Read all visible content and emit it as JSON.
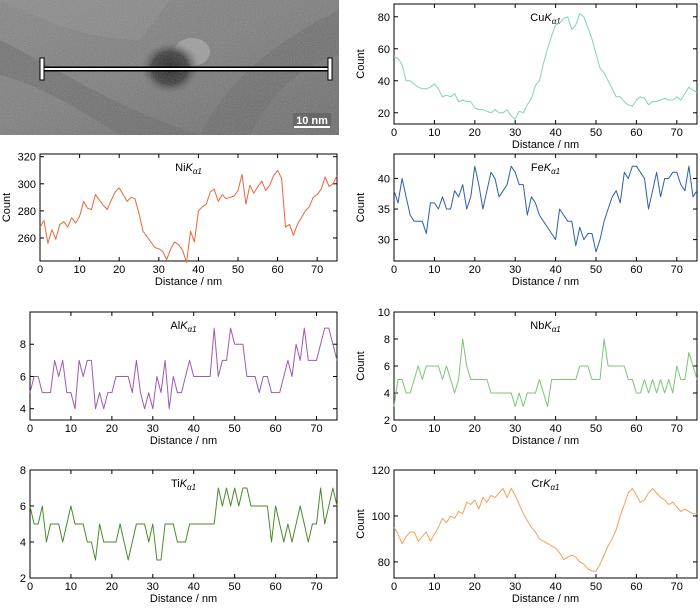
{
  "image_panel": {
    "scale_bar_label": "10 nm"
  },
  "chart_data": [
    {
      "type": "line",
      "element": "Cu",
      "line": "Kα1",
      "color": "#7fd3c3",
      "xlabel": "Distance / nm",
      "ylabel": "Count",
      "xlim": [
        0,
        75
      ],
      "ylim": [
        13,
        88
      ],
      "xticks": [
        0,
        10,
        20,
        30,
        40,
        50,
        60,
        70
      ],
      "yticks": [
        20,
        40,
        60,
        80
      ],
      "x": [
        0,
        1,
        2,
        3,
        4,
        5,
        6,
        7,
        8,
        9,
        10,
        11,
        12,
        13,
        14,
        15,
        16,
        17,
        18,
        19,
        20,
        21,
        22,
        23,
        24,
        25,
        26,
        27,
        28,
        29,
        30,
        31,
        32,
        33,
        34,
        35,
        36,
        37,
        38,
        39,
        40,
        41,
        42,
        43,
        44,
        45,
        46,
        47,
        48,
        49,
        50,
        51,
        52,
        53,
        54,
        55,
        56,
        57,
        58,
        59,
        60,
        61,
        62,
        63,
        64,
        65,
        66,
        67,
        68,
        69,
        70,
        71,
        72,
        73,
        74,
        75
      ],
      "values": [
        55,
        54,
        50,
        40,
        40,
        38,
        36,
        35,
        35,
        36,
        38,
        35,
        30,
        31,
        30,
        32,
        27,
        28,
        27,
        27,
        23,
        22,
        22,
        21,
        20,
        22,
        20,
        20,
        22,
        18,
        16,
        21,
        20,
        25,
        29,
        37,
        40,
        51,
        60,
        68,
        75,
        76,
        79,
        80,
        72,
        75,
        82,
        80,
        73,
        66,
        57,
        48,
        45,
        40,
        35,
        30,
        30,
        27,
        25,
        24,
        28,
        30,
        29,
        25,
        27,
        27,
        28,
        29,
        28,
        28,
        30,
        28,
        32,
        36,
        34,
        33
      ]
    },
    {
      "type": "line",
      "element": "Ni",
      "line": "Kα1",
      "color": "#e5683a",
      "xlabel": "Distance / nm",
      "ylabel": "Count",
      "xlim": [
        0,
        75
      ],
      "ylim": [
        243,
        322
      ],
      "xticks": [
        0,
        10,
        20,
        30,
        40,
        50,
        60,
        70
      ],
      "yticks": [
        260,
        280,
        300,
        320
      ],
      "x": [
        0,
        1,
        2,
        3,
        4,
        5,
        6,
        7,
        8,
        9,
        10,
        11,
        12,
        13,
        14,
        15,
        16,
        17,
        18,
        19,
        20,
        21,
        22,
        23,
        24,
        25,
        26,
        27,
        28,
        29,
        30,
        31,
        32,
        33,
        34,
        35,
        36,
        37,
        38,
        39,
        40,
        41,
        42,
        43,
        44,
        45,
        46,
        47,
        48,
        49,
        50,
        51,
        52,
        53,
        54,
        55,
        56,
        57,
        58,
        59,
        60,
        61,
        62,
        63,
        64,
        65,
        66,
        67,
        68,
        69,
        70,
        71,
        72,
        73,
        74,
        75
      ],
      "values": [
        268,
        273,
        256,
        266,
        259,
        270,
        272,
        268,
        275,
        271,
        276,
        287,
        282,
        281,
        292,
        288,
        284,
        281,
        288,
        294,
        297,
        292,
        287,
        290,
        289,
        278,
        265,
        261,
        257,
        253,
        252,
        250,
        244,
        252,
        257,
        255,
        251,
        242,
        265,
        257,
        280,
        283,
        285,
        294,
        296,
        287,
        292,
        289,
        290,
        291,
        295,
        307,
        285,
        299,
        293,
        298,
        302,
        295,
        299,
        306,
        310,
        304,
        268,
        270,
        262,
        270,
        275,
        280,
        283,
        290,
        292,
        296,
        305,
        298,
        300,
        306
      ]
    },
    {
      "type": "line",
      "element": "Fe",
      "line": "Kα1",
      "color": "#2e5fa8",
      "xlabel": "Distance / nm",
      "ylabel": "Count",
      "xlim": [
        0,
        75
      ],
      "ylim": [
        26.5,
        44
      ],
      "xticks": [
        0,
        10,
        20,
        30,
        40,
        50,
        60,
        70
      ],
      "yticks": [
        30,
        35,
        40
      ],
      "x": [
        0,
        1,
        2,
        3,
        4,
        5,
        6,
        7,
        8,
        9,
        10,
        11,
        12,
        13,
        14,
        15,
        16,
        17,
        18,
        19,
        20,
        21,
        22,
        23,
        24,
        25,
        26,
        27,
        28,
        29,
        30,
        31,
        32,
        33,
        34,
        35,
        36,
        37,
        38,
        39,
        40,
        41,
        42,
        43,
        44,
        45,
        46,
        47,
        48,
        49,
        50,
        51,
        52,
        53,
        54,
        55,
        56,
        57,
        58,
        59,
        60,
        61,
        62,
        63,
        64,
        65,
        66,
        67,
        68,
        69,
        70,
        71,
        72,
        73,
        74,
        75
      ],
      "values": [
        38,
        36,
        40,
        37,
        34,
        33,
        33,
        33,
        31,
        36,
        36,
        35,
        37,
        35,
        35,
        38,
        37,
        39,
        35,
        37,
        42,
        39,
        35,
        38,
        41,
        40,
        37,
        38,
        39,
        42,
        41,
        39,
        39,
        34,
        37,
        36,
        34,
        33,
        32,
        31,
        30,
        35,
        34,
        33,
        33,
        29,
        32,
        30,
        31,
        31,
        28,
        30,
        33,
        35,
        37,
        38,
        36,
        41,
        40,
        42,
        42,
        41,
        40,
        35,
        38,
        41,
        37,
        40,
        40,
        41,
        41,
        39,
        38,
        42,
        37,
        38
      ]
    },
    {
      "type": "line",
      "element": "Al",
      "line": "Kα1",
      "color": "#9b59b6",
      "xlabel": "Distance / nm",
      "ylabel": "Count",
      "xlim": [
        0,
        75
      ],
      "ylim": [
        3.3,
        10
      ],
      "xticks": [
        0,
        10,
        20,
        30,
        40,
        50,
        60,
        70
      ],
      "yticks": [
        4,
        6,
        8
      ],
      "x": [
        0,
        1,
        2,
        3,
        4,
        5,
        6,
        7,
        8,
        9,
        10,
        11,
        12,
        13,
        14,
        15,
        16,
        17,
        18,
        19,
        20,
        21,
        22,
        23,
        24,
        25,
        26,
        27,
        28,
        29,
        30,
        31,
        32,
        33,
        34,
        35,
        36,
        37,
        38,
        39,
        40,
        41,
        42,
        43,
        44,
        45,
        46,
        47,
        48,
        49,
        50,
        51,
        52,
        53,
        54,
        55,
        56,
        57,
        58,
        59,
        60,
        61,
        62,
        63,
        64,
        65,
        66,
        67,
        68,
        69,
        70,
        71,
        72,
        73,
        74,
        75
      ],
      "values": [
        5,
        6,
        6,
        5,
        5,
        5,
        7,
        6,
        7,
        5,
        5,
        4,
        7,
        6,
        7,
        7,
        4,
        5,
        4,
        5,
        5,
        6,
        6,
        6,
        6,
        5,
        7,
        5,
        4,
        5,
        4,
        6,
        5,
        7,
        4,
        6,
        5,
        5,
        6,
        7,
        6,
        6,
        6,
        6,
        6,
        9,
        6,
        7,
        7,
        9,
        8,
        8,
        8,
        6,
        6,
        6,
        5,
        6,
        6,
        5,
        5,
        5,
        6,
        7,
        6,
        8,
        7,
        9,
        7,
        7,
        7,
        8,
        9,
        9,
        8,
        7
      ]
    },
    {
      "type": "line",
      "element": "Nb",
      "line": "Kα1",
      "color": "#7cc576",
      "xlabel": "Distance / nm",
      "ylabel": "Count",
      "xlim": [
        0,
        75
      ],
      "ylim": [
        2,
        10
      ],
      "xticks": [
        0,
        10,
        20,
        30,
        40,
        50,
        60,
        70
      ],
      "yticks": [
        2,
        4,
        6,
        8,
        10
      ],
      "x": [
        0,
        1,
        2,
        3,
        4,
        5,
        6,
        7,
        8,
        9,
        10,
        11,
        12,
        13,
        14,
        15,
        16,
        17,
        18,
        19,
        20,
        21,
        22,
        23,
        24,
        25,
        26,
        27,
        28,
        29,
        30,
        31,
        32,
        33,
        34,
        35,
        36,
        37,
        38,
        39,
        40,
        41,
        42,
        43,
        44,
        45,
        46,
        47,
        48,
        49,
        50,
        51,
        52,
        53,
        54,
        55,
        56,
        57,
        58,
        59,
        60,
        61,
        62,
        63,
        64,
        65,
        66,
        67,
        68,
        69,
        70,
        71,
        72,
        73,
        74,
        75
      ],
      "values": [
        3,
        5,
        5,
        4,
        4,
        5,
        6,
        5,
        6,
        6,
        6,
        6,
        5,
        6,
        5,
        4,
        5,
        8,
        6,
        5,
        5,
        5,
        5,
        5,
        4,
        4,
        4,
        4,
        4,
        4,
        3,
        4,
        3,
        4,
        4,
        4,
        5,
        4,
        3,
        5,
        5,
        5,
        5,
        5,
        5,
        5,
        6,
        6,
        6,
        5,
        5,
        5,
        8,
        6,
        6,
        6,
        6,
        6,
        5,
        5,
        4,
        4,
        5,
        4,
        5,
        4,
        5,
        4,
        5,
        4,
        6,
        5,
        5,
        7,
        6,
        5
      ]
    },
    {
      "type": "line",
      "element": "Ti",
      "line": "Kα1",
      "color": "#4a8a2c",
      "xlabel": "Distance / nm",
      "ylabel": "Count",
      "xlim": [
        0,
        75
      ],
      "ylim": [
        2,
        8
      ],
      "xticks": [
        0,
        10,
        20,
        30,
        40,
        50,
        60,
        70
      ],
      "yticks": [
        2,
        4,
        6,
        8
      ],
      "x": [
        0,
        1,
        2,
        3,
        4,
        5,
        6,
        7,
        8,
        9,
        10,
        11,
        12,
        13,
        14,
        15,
        16,
        17,
        18,
        19,
        20,
        21,
        22,
        23,
        24,
        25,
        26,
        27,
        28,
        29,
        30,
        31,
        32,
        33,
        34,
        35,
        36,
        37,
        38,
        39,
        40,
        41,
        42,
        43,
        44,
        45,
        46,
        47,
        48,
        49,
        50,
        51,
        52,
        53,
        54,
        55,
        56,
        57,
        58,
        59,
        60,
        61,
        62,
        63,
        64,
        65,
        66,
        67,
        68,
        69,
        70,
        71,
        72,
        73,
        74,
        75
      ],
      "values": [
        6,
        5,
        5,
        6,
        4,
        5,
        5,
        5,
        4,
        5,
        6,
        5,
        5,
        5,
        4,
        4,
        3,
        5,
        4,
        4,
        4,
        4,
        5,
        4,
        3,
        4,
        5,
        5,
        5,
        4,
        5,
        3,
        3,
        5,
        5,
        5,
        4,
        4,
        4,
        5,
        5,
        5,
        5,
        5,
        5,
        5,
        7,
        6,
        7,
        6,
        7,
        6,
        7,
        7,
        6,
        6,
        6,
        6,
        6,
        4,
        6,
        5,
        4,
        5,
        4,
        5,
        6,
        5,
        4,
        5,
        5,
        7,
        5,
        6,
        7,
        6
      ]
    },
    {
      "type": "line",
      "element": "Cr",
      "line": "Kα1",
      "color": "#f5a05a",
      "xlabel": "Distance / nm",
      "ylabel": "Count",
      "xlim": [
        0,
        75
      ],
      "ylim": [
        73,
        120
      ],
      "xticks": [
        0,
        10,
        20,
        30,
        40,
        50,
        60,
        70
      ],
      "yticks": [
        80,
        100,
        120
      ],
      "x": [
        0,
        1,
        2,
        3,
        4,
        5,
        6,
        7,
        8,
        9,
        10,
        11,
        12,
        13,
        14,
        15,
        16,
        17,
        18,
        19,
        20,
        21,
        22,
        23,
        24,
        25,
        26,
        27,
        28,
        29,
        30,
        31,
        32,
        33,
        34,
        35,
        36,
        37,
        38,
        39,
        40,
        41,
        42,
        43,
        44,
        45,
        46,
        47,
        48,
        49,
        50,
        51,
        52,
        53,
        54,
        55,
        56,
        57,
        58,
        59,
        60,
        61,
        62,
        63,
        64,
        65,
        66,
        67,
        68,
        69,
        70,
        71,
        72,
        73,
        74,
        75
      ],
      "values": [
        95,
        92,
        88,
        91,
        93,
        93,
        89,
        91,
        93,
        89,
        92,
        95,
        99,
        97,
        100,
        99,
        102,
        101,
        106,
        105,
        107,
        103,
        108,
        106,
        109,
        108,
        110,
        112,
        108,
        112,
        109,
        105,
        101,
        98,
        95,
        93,
        90,
        89,
        88,
        87,
        86,
        84,
        81,
        82,
        83,
        82,
        80,
        79,
        77,
        76,
        76,
        79,
        83,
        87,
        90,
        94,
        100,
        105,
        110,
        112,
        109,
        106,
        107,
        110,
        112,
        110,
        108,
        107,
        105,
        106,
        104,
        102,
        103,
        102,
        101,
        101
      ]
    }
  ]
}
